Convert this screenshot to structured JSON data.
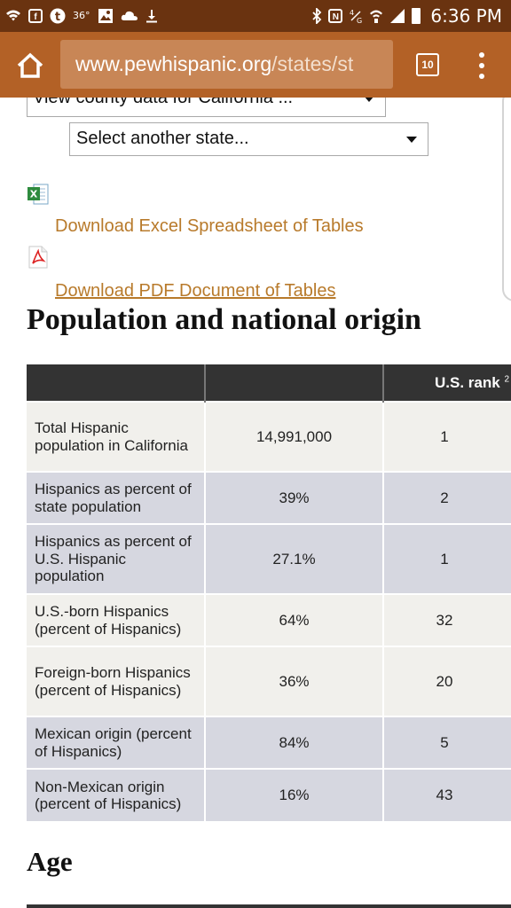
{
  "status_bar": {
    "temperature": "36°",
    "time": "6:36 PM",
    "icons_left": [
      "wifi-icon",
      "facebook-icon",
      "tumblr-icon",
      "temperature",
      "image-icon",
      "cloud-icon",
      "download-icon"
    ],
    "icons_right": [
      "bluetooth-icon",
      "nfc-icon",
      "data-icon",
      "wifi-calling-icon",
      "signal-icon",
      "battery-icon"
    ]
  },
  "browser": {
    "url_host": "www.pewhispanic.org",
    "url_path": "/states/st",
    "tab_count": "10"
  },
  "page": {
    "county_select": "View county data for California ...",
    "state_select": "Select another state...",
    "download_excel": "Download Excel Spreadsheet of Tables",
    "download_pdf": "Download PDF Document of Tables",
    "section_title": "Population and national origin",
    "next_section_title": "Age"
  },
  "table": {
    "header": {
      "col1": "",
      "col2": "",
      "col3": "U.S. rank",
      "col3_note": "2"
    },
    "rows": [
      {
        "label": "Total Hispanic population in California",
        "value": "14,991,000",
        "rank": "1"
      },
      {
        "label": "Hispanics as percent of state population",
        "value": "39%",
        "rank": "2"
      },
      {
        "label": "Hispanics as percent of U.S. Hispanic population",
        "value": "27.1%",
        "rank": "1"
      },
      {
        "label": "U.S.-born Hispanics (percent of Hispanics)",
        "value": "64%",
        "rank": "32"
      },
      {
        "label": "Foreign-born Hispanics (percent of Hispanics)",
        "value": "36%",
        "rank": "20"
      },
      {
        "label": "Mexican origin (percent of Hispanics)",
        "value": "84%",
        "rank": "5"
      },
      {
        "label": "Non-Mexican origin (percent of Hispanics)",
        "value": "16%",
        "rank": "43"
      }
    ]
  },
  "colors": {
    "status_bar": "#6a3310",
    "toolbar": "#b36126",
    "url_box": "#c88656",
    "link": "#b87a2b",
    "table_header": "#333333",
    "row_light": "#f1f0ec",
    "row_shaded": "#d6d7e0"
  }
}
